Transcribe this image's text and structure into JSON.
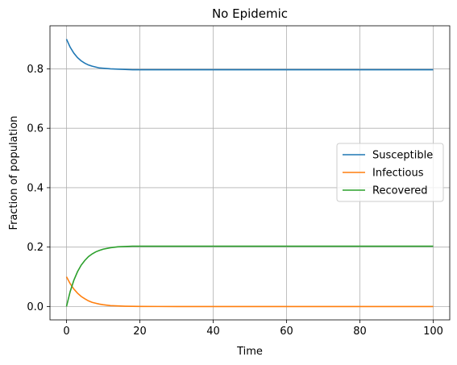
{
  "chart_data": {
    "type": "line",
    "title": "No Epidemic",
    "xlabel": "Time",
    "ylabel": "Fraction of population",
    "xlim": [
      -4.5,
      104.5
    ],
    "ylim": [
      -0.045,
      0.945
    ],
    "xticks": [
      0,
      20,
      40,
      60,
      80,
      100
    ],
    "yticks": [
      0.0,
      0.2,
      0.4,
      0.6,
      0.8
    ],
    "xtick_labels": [
      "0",
      "20",
      "40",
      "60",
      "80",
      "100"
    ],
    "ytick_labels": [
      "0.0",
      "0.2",
      "0.4",
      "0.6",
      "0.8"
    ],
    "grid": true,
    "legend_position": "center-right",
    "x": [
      0,
      1,
      2,
      3,
      4,
      5,
      6,
      7,
      8,
      9,
      10,
      12,
      14,
      16,
      18,
      20,
      25,
      30,
      40,
      50,
      60,
      70,
      80,
      90,
      100
    ],
    "series": [
      {
        "name": "Susceptible",
        "color": "#1f77b4",
        "values": [
          0.9,
          0.873,
          0.853,
          0.838,
          0.827,
          0.819,
          0.813,
          0.809,
          0.806,
          0.803,
          0.802,
          0.8,
          0.799,
          0.798,
          0.797,
          0.797,
          0.797,
          0.797,
          0.797,
          0.797,
          0.797,
          0.797,
          0.797,
          0.797,
          0.797
        ]
      },
      {
        "name": "Infectious",
        "color": "#ff7f0e",
        "values": [
          0.1,
          0.077,
          0.059,
          0.045,
          0.034,
          0.026,
          0.019,
          0.014,
          0.011,
          0.008,
          0.006,
          0.003,
          0.002,
          0.001,
          0.0005,
          0.0003,
          0.0001,
          0.0,
          0.0,
          0.0,
          0.0,
          0.0,
          0.0,
          0.0,
          0.0
        ]
      },
      {
        "name": "Recovered",
        "color": "#2ca02c",
        "values": [
          0.0,
          0.05,
          0.088,
          0.117,
          0.139,
          0.155,
          0.168,
          0.177,
          0.184,
          0.189,
          0.193,
          0.198,
          0.201,
          0.202,
          0.203,
          0.203,
          0.203,
          0.203,
          0.203,
          0.203,
          0.203,
          0.203,
          0.203,
          0.203,
          0.203
        ]
      }
    ]
  }
}
